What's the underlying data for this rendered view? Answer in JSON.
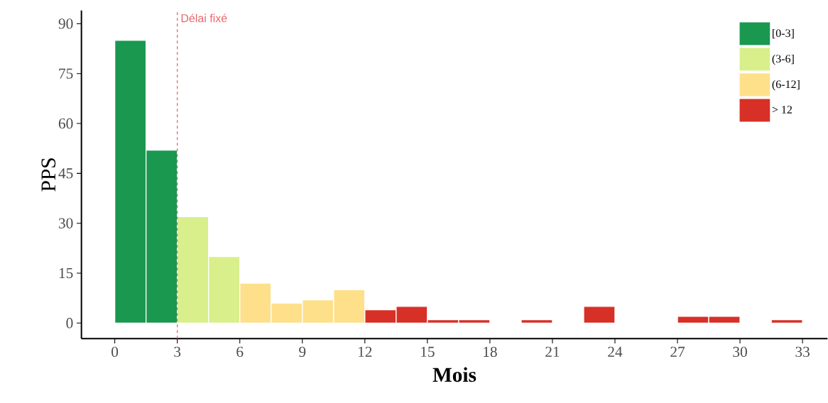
{
  "chart_data": {
    "type": "histogram",
    "xlabel": "Mois",
    "ylabel": "PPS",
    "bins": [
      0,
      1.5,
      3,
      4.5,
      6,
      7.5,
      9,
      10.5,
      12,
      13.5,
      15,
      16.5,
      18,
      19.5,
      21,
      22.5,
      24,
      25.5,
      27,
      28.5,
      30,
      31.5,
      33
    ],
    "series": [
      {
        "name": "[0-3]",
        "color": "#1a9850",
        "values": [
          85,
          52,
          null,
          null,
          null,
          null,
          null,
          null,
          null,
          null,
          null,
          null,
          null,
          null,
          null,
          null,
          null,
          null,
          null,
          null,
          null,
          null
        ]
      },
      {
        "name": "(3-6]",
        "color": "#d9ef8b",
        "values": [
          null,
          null,
          32,
          20,
          null,
          null,
          null,
          null,
          null,
          null,
          null,
          null,
          null,
          null,
          null,
          null,
          null,
          null,
          null,
          null,
          null,
          null
        ]
      },
      {
        "name": "(6-12]",
        "color": "#fee08b",
        "values": [
          null,
          null,
          null,
          null,
          12,
          6,
          7,
          10,
          null,
          null,
          null,
          null,
          null,
          null,
          null,
          null,
          null,
          null,
          null,
          null,
          null,
          null
        ]
      },
      {
        "name": "> 12",
        "color": "#d73027",
        "values": [
          null,
          null,
          null,
          null,
          null,
          null,
          null,
          null,
          4,
          5,
          1,
          1,
          0,
          1,
          0,
          5,
          0,
          0,
          2,
          2,
          0,
          1
        ]
      }
    ],
    "xlim": [
      -1.6,
      34.2
    ],
    "ylim": [
      -4.7,
      94
    ],
    "xticks": [
      0,
      3,
      6,
      9,
      12,
      15,
      18,
      21,
      24,
      27,
      30,
      33
    ],
    "yticks": [
      0,
      15,
      30,
      45,
      60,
      75,
      90
    ],
    "ref_lines": [
      {
        "axis": "x",
        "value": 3,
        "label": "Délai fixé",
        "color": "#e8676b",
        "line_style": "dashed"
      }
    ],
    "legend": "top right",
    "grid": false
  }
}
